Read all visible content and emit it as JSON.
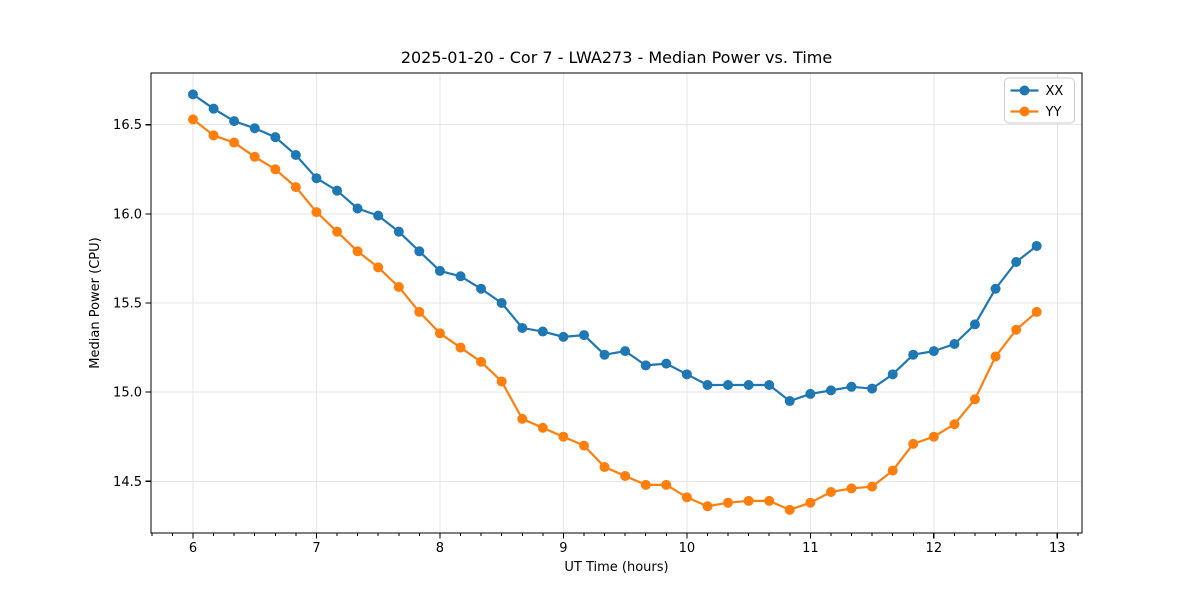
{
  "chart_data": {
    "type": "line",
    "title": "2025-01-20 - Cor 7 - LWA273 - Median Power vs. Time",
    "xlabel": "UT Time (hours)",
    "ylabel": "Median Power (CPU)",
    "xlim": [
      5.66,
      13.2
    ],
    "ylim": [
      14.21,
      16.79
    ],
    "x_ticks": [
      6,
      7,
      8,
      9,
      10,
      11,
      12,
      13
    ],
    "x_tick_labels": [
      "6",
      "7",
      "8",
      "9",
      "10",
      "11",
      "12",
      "13"
    ],
    "x_minor_step": 0.16667,
    "y_ticks": [
      14.5,
      15.0,
      15.5,
      16.0,
      16.5
    ],
    "y_tick_labels": [
      "14.5",
      "15.0",
      "15.5",
      "16.0",
      "16.5"
    ],
    "grid": "major",
    "grid_color": "#e6e6e6",
    "legend_position": "upper right",
    "x": [
      6.0,
      6.167,
      6.333,
      6.5,
      6.667,
      6.833,
      7.0,
      7.167,
      7.333,
      7.5,
      7.667,
      7.833,
      8.0,
      8.167,
      8.333,
      8.5,
      8.667,
      8.833,
      9.0,
      9.167,
      9.333,
      9.5,
      9.667,
      9.833,
      10.0,
      10.167,
      10.333,
      10.5,
      10.667,
      10.833,
      11.0,
      11.167,
      11.333,
      11.5,
      11.667,
      11.833,
      12.0,
      12.167,
      12.333,
      12.5,
      12.667,
      12.833
    ],
    "series": [
      {
        "name": "XX",
        "color": "#1f77b4",
        "marker": "circle",
        "values": [
          16.67,
          16.59,
          16.52,
          16.48,
          16.43,
          16.33,
          16.2,
          16.13,
          16.03,
          15.99,
          15.9,
          15.79,
          15.68,
          15.65,
          15.58,
          15.5,
          15.36,
          15.34,
          15.31,
          15.32,
          15.21,
          15.23,
          15.15,
          15.16,
          15.1,
          15.04,
          15.04,
          15.04,
          15.04,
          14.95,
          14.99,
          15.01,
          15.03,
          15.02,
          15.1,
          15.21,
          15.23,
          15.27,
          15.38,
          15.58,
          15.73,
          15.82
        ]
      },
      {
        "name": "YY",
        "color": "#ff7f0e",
        "marker": "circle",
        "values": [
          16.53,
          16.44,
          16.4,
          16.32,
          16.25,
          16.15,
          16.01,
          15.9,
          15.79,
          15.7,
          15.59,
          15.45,
          15.33,
          15.25,
          15.17,
          15.06,
          14.85,
          14.8,
          14.75,
          14.7,
          14.58,
          14.53,
          14.48,
          14.48,
          14.41,
          14.36,
          14.38,
          14.39,
          14.39,
          14.34,
          14.38,
          14.44,
          14.46,
          14.47,
          14.56,
          14.71,
          14.75,
          14.82,
          14.96,
          15.2,
          15.35,
          15.45
        ]
      }
    ]
  }
}
